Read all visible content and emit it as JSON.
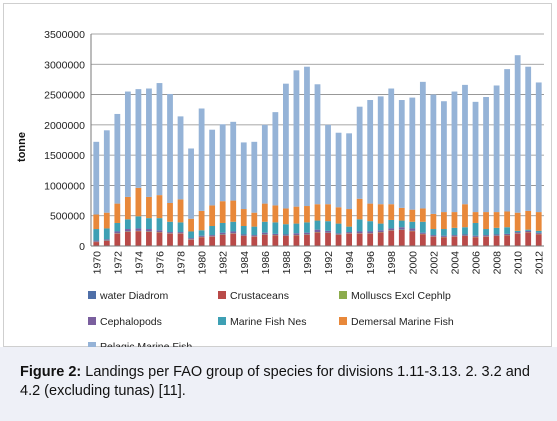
{
  "chart_data": {
    "type": "bar",
    "stacked": true,
    "ylabel": "tonne",
    "xlabel": "",
    "ylim": [
      0,
      3500000
    ],
    "yticks": [
      0,
      500000,
      1000000,
      1500000,
      2000000,
      2500000,
      3000000,
      3500000
    ],
    "ytick_labels": [
      "0",
      "500000",
      "1000000",
      "1500000",
      "2000000",
      "2500000",
      "3000000",
      "3500000"
    ],
    "grid": true,
    "legend_position": "bottom",
    "categories": [
      "1970",
      "1971",
      "1972",
      "1973",
      "1974",
      "1975",
      "1976",
      "1977",
      "1978",
      "1979",
      "1980",
      "1981",
      "1982",
      "1983",
      "1984",
      "1985",
      "1986",
      "1987",
      "1988",
      "1989",
      "1990",
      "1991",
      "1992",
      "1993",
      "1994",
      "1995",
      "1996",
      "1997",
      "1998",
      "1999",
      "2000",
      "2001",
      "2002",
      "2003",
      "2004",
      "2005",
      "2006",
      "2007",
      "2008",
      "2009",
      "2010",
      "2011",
      "2012"
    ],
    "xtick_labels": [
      "1970",
      "1972",
      "1974",
      "1976",
      "1978",
      "1980",
      "1982",
      "1984",
      "1986",
      "1988",
      "1990",
      "1992",
      "1994",
      "1996",
      "1998",
      "2000",
      "2002",
      "2004",
      "2006",
      "2008",
      "2010",
      "2012"
    ],
    "series": [
      {
        "name": "water Diadrom",
        "color": "#4f6fa8",
        "values": [
          5000,
          5000,
          5000,
          5000,
          5000,
          5000,
          5000,
          5000,
          5000,
          5000,
          5000,
          5000,
          5000,
          5000,
          5000,
          5000,
          5000,
          5000,
          5000,
          5000,
          5000,
          5000,
          5000,
          5000,
          5000,
          5000,
          5000,
          5000,
          5000,
          5000,
          5000,
          5000,
          5000,
          5000,
          5000,
          5000,
          5000,
          5000,
          5000,
          5000,
          5000,
          5000,
          5000
        ]
      },
      {
        "name": "Crustaceans",
        "color": "#b94a48",
        "values": [
          60000,
          80000,
          200000,
          230000,
          240000,
          230000,
          220000,
          200000,
          200000,
          100000,
          140000,
          150000,
          180000,
          200000,
          160000,
          150000,
          180000,
          170000,
          160000,
          170000,
          180000,
          220000,
          210000,
          180000,
          200000,
          200000,
          200000,
          220000,
          250000,
          260000,
          240000,
          190000,
          150000,
          140000,
          150000,
          160000,
          140000,
          150000,
          160000,
          170000,
          200000,
          220000,
          190000
        ]
      },
      {
        "name": "Molluscs Excl Cephlp",
        "color": "#8cac4c",
        "values": [
          5000,
          5000,
          5000,
          5000,
          5000,
          5000,
          5000,
          5000,
          5000,
          5000,
          5000,
          5000,
          5000,
          5000,
          5000,
          5000,
          5000,
          5000,
          5000,
          5000,
          5000,
          5000,
          5000,
          5000,
          5000,
          5000,
          5000,
          5000,
          5000,
          5000,
          5000,
          5000,
          5000,
          5000,
          5000,
          5000,
          5000,
          5000,
          5000,
          5000,
          5000,
          5000,
          5000
        ]
      },
      {
        "name": "Cephalopods",
        "color": "#7a5f9e",
        "values": [
          20000,
          20000,
          30000,
          40000,
          40000,
          40000,
          30000,
          20000,
          20000,
          20000,
          20000,
          20000,
          30000,
          30000,
          20000,
          20000,
          30000,
          20000,
          20000,
          30000,
          30000,
          40000,
          30000,
          20000,
          20000,
          30000,
          30000,
          30000,
          30000,
          40000,
          40000,
          20000,
          20000,
          20000,
          20000,
          20000,
          20000,
          20000,
          20000,
          20000,
          20000,
          20000,
          20000
        ]
      },
      {
        "name": "Marine Fish Nes",
        "color": "#3ea0b4",
        "values": [
          190000,
          180000,
          140000,
          160000,
          200000,
          180000,
          200000,
          170000,
          160000,
          110000,
          90000,
          150000,
          160000,
          160000,
          140000,
          140000,
          180000,
          190000,
          170000,
          160000,
          170000,
          150000,
          160000,
          160000,
          90000,
          200000,
          170000,
          110000,
          140000,
          110000,
          110000,
          180000,
          100000,
          110000,
          120000,
          120000,
          210000,
          100000,
          110000,
          110000,
          20000,
          20000,
          30000
        ]
      },
      {
        "name": "Demersal Marine Fish",
        "color": "#e8883a",
        "values": [
          240000,
          260000,
          320000,
          370000,
          470000,
          350000,
          380000,
          310000,
          380000,
          210000,
          320000,
          340000,
          360000,
          350000,
          280000,
          230000,
          300000,
          280000,
          260000,
          280000,
          270000,
          270000,
          280000,
          270000,
          290000,
          340000,
          290000,
          320000,
          260000,
          210000,
          200000,
          220000,
          250000,
          280000,
          260000,
          380000,
          180000,
          280000,
          260000,
          260000,
          300000,
          310000,
          310000
        ]
      },
      {
        "name": "Pelagic Marine Fish",
        "color": "#95b3d7",
        "values": [
          1200000,
          1360000,
          1480000,
          1740000,
          1630000,
          1790000,
          1850000,
          1800000,
          1370000,
          1160000,
          1690000,
          1250000,
          1270000,
          1300000,
          1100000,
          1170000,
          1300000,
          1540000,
          2060000,
          2250000,
          2300000,
          1980000,
          1310000,
          1230000,
          1250000,
          1520000,
          1710000,
          1780000,
          1910000,
          1780000,
          1850000,
          2090000,
          1970000,
          1830000,
          1990000,
          1970000,
          1820000,
          1900000,
          2090000,
          2350000,
          2600000,
          2380000,
          2140000
        ]
      }
    ]
  },
  "caption": {
    "label": "Figure 2:",
    "text": "Landings per FAO group of species for divisions 1.11-3.13. 2. 3.2 and 4.2 (excluding tunas) [11]."
  }
}
